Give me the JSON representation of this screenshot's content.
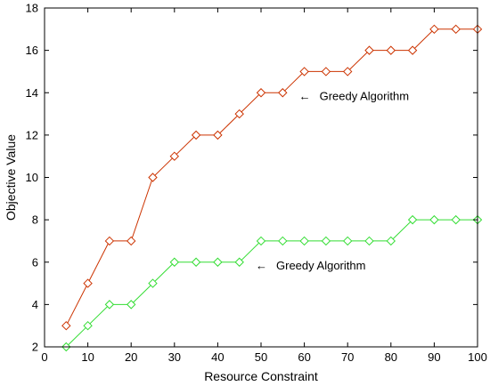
{
  "chart_data": {
    "type": "line",
    "xlabel": "Resource Constraint",
    "ylabel": "Objective Value",
    "xlim": [
      0,
      100
    ],
    "ylim": [
      2,
      18
    ],
    "xticks": [
      "0",
      "10",
      "20",
      "30",
      "40",
      "50",
      "60",
      "70",
      "80",
      "90",
      "100"
    ],
    "yticks": [
      "2",
      "4",
      "6",
      "8",
      "10",
      "12",
      "14",
      "16",
      "18"
    ],
    "grid": false,
    "x": [
      5,
      10,
      15,
      20,
      25,
      30,
      35,
      40,
      45,
      50,
      55,
      60,
      65,
      70,
      75,
      80,
      85,
      90,
      95,
      100
    ],
    "series": [
      {
        "color": "#cc3300",
        "marker": "diamond",
        "values": [
          3,
          5,
          7,
          7,
          10,
          11,
          12,
          12,
          13,
          14,
          14,
          15,
          15,
          15,
          16,
          16,
          16,
          17,
          17,
          17
        ]
      },
      {
        "color": "#33dd33",
        "marker": "diamond",
        "values": [
          2,
          3,
          4,
          4,
          5,
          6,
          6,
          6,
          6,
          7,
          7,
          7,
          7,
          7,
          7,
          7,
          8,
          8,
          8,
          8
        ]
      }
    ],
    "annotations": [
      {
        "text": "Greedy Algorithm",
        "arrow": "←",
        "x": 60,
        "y": 13.85
      },
      {
        "text": "Greedy Algorithm",
        "arrow": "←",
        "x": 50,
        "y": 5.85
      }
    ]
  }
}
